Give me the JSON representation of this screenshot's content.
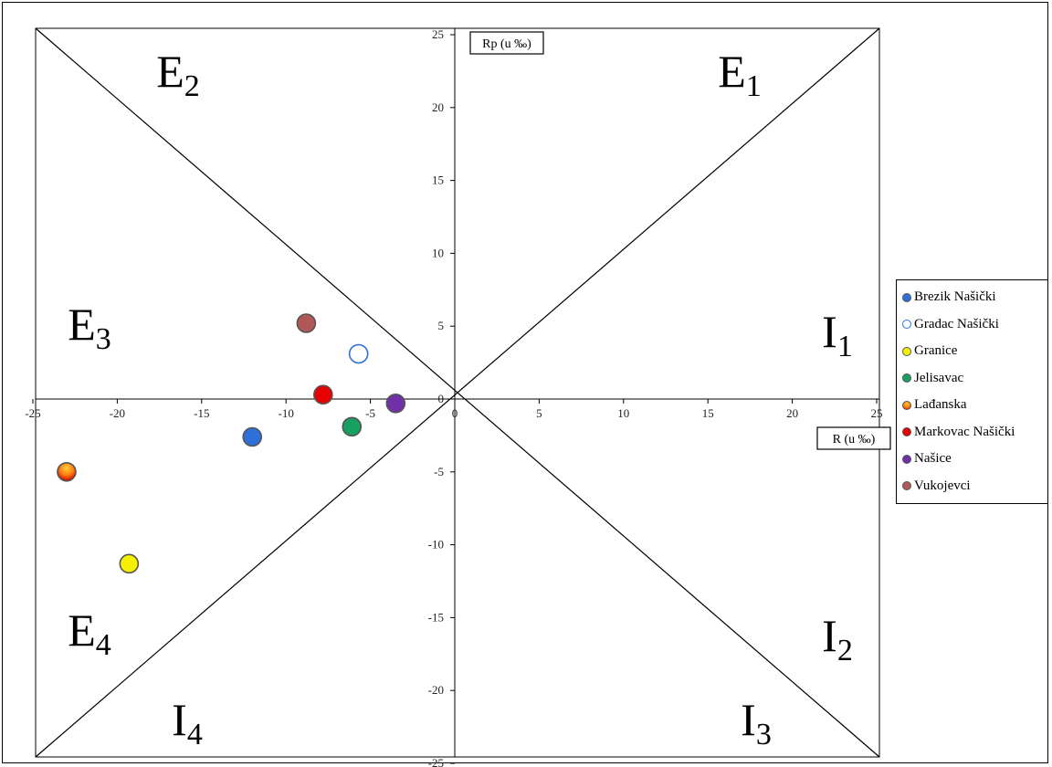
{
  "chart_data": {
    "type": "scatter",
    "xlabel": "R (u ‰)",
    "ylabel": "Rp (u ‰)",
    "xlim": [
      -25,
      25
    ],
    "ylim": [
      -25,
      25
    ],
    "xticks": [
      -25,
      -20,
      -15,
      -10,
      -5,
      0,
      5,
      10,
      15,
      20,
      25
    ],
    "yticks": [
      25,
      20,
      15,
      10,
      5,
      0,
      -5,
      -10,
      -15,
      -20,
      -25
    ],
    "grid": false,
    "legend_position": "right",
    "diagonal_lines": true,
    "regions": [
      {
        "main": "E",
        "sub": "1",
        "area": "top-right"
      },
      {
        "main": "E",
        "sub": "2",
        "area": "top-left"
      },
      {
        "main": "E",
        "sub": "3",
        "area": "left-upper"
      },
      {
        "main": "E",
        "sub": "4",
        "area": "left-lower"
      },
      {
        "main": "I",
        "sub": "1",
        "area": "right-upper"
      },
      {
        "main": "I",
        "sub": "2",
        "area": "right-lower"
      },
      {
        "main": "I",
        "sub": "3",
        "area": "bottom-right"
      },
      {
        "main": "I",
        "sub": "4",
        "area": "bottom-left"
      }
    ],
    "series": [
      {
        "name": "Brezik Našički",
        "x": -12,
        "y": -2.6,
        "color": "#2f6fd8",
        "fill": "solid"
      },
      {
        "name": "Gradac Našički",
        "x": -5.7,
        "y": 3.1,
        "color": "#2f6fd8",
        "fill": "hollow"
      },
      {
        "name": "Granice",
        "x": -19.3,
        "y": -11.3,
        "color": "#f5f000",
        "fill": "solid"
      },
      {
        "name": "Jelisavac",
        "x": -6.1,
        "y": -1.9,
        "color": "#17a060",
        "fill": "solid"
      },
      {
        "name": "Lađanska",
        "x": -23,
        "y": -5,
        "color": "#f07010",
        "fill": "gradient"
      },
      {
        "name": "Markovac Našički",
        "x": -7.8,
        "y": 0.3,
        "color": "#e80000",
        "fill": "solid"
      },
      {
        "name": "Našice",
        "x": -3.5,
        "y": -0.3,
        "color": "#7030a8",
        "fill": "solid"
      },
      {
        "name": "Vukojevci",
        "x": -8.8,
        "y": 5.2,
        "color": "#b05858",
        "fill": "solid"
      }
    ]
  }
}
